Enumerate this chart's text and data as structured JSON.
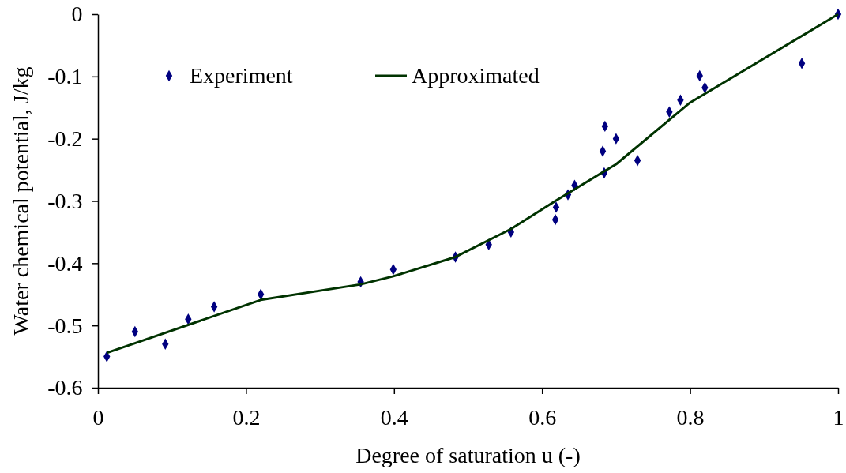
{
  "chart_data": {
    "type": "scatter",
    "xlabel": "Degree of saturation u (-)",
    "ylabel": "Water chemical potential, J/kg",
    "xlim": [
      0,
      1
    ],
    "xticks": [
      0,
      0.2,
      0.4,
      0.6,
      0.8,
      1
    ],
    "ylim": [
      -0.6,
      0
    ],
    "yticks": [
      -0.6,
      -0.5,
      -0.4,
      -0.3,
      -0.2,
      -0.1,
      0
    ],
    "grid": false,
    "legend": "top left",
    "series": [
      {
        "name": "Experiment",
        "type": "scatter",
        "marker": "diamond",
        "color": "#000080",
        "x": [
          0.012,
          0.05,
          0.091,
          0.122,
          0.157,
          0.22,
          0.355,
          0.399,
          0.483,
          0.528,
          0.558,
          0.618,
          0.619,
          0.635,
          0.644,
          0.682,
          0.684,
          0.685,
          0.7,
          0.729,
          0.772,
          0.787,
          0.813,
          0.82,
          0.951,
          1
        ],
        "values": [
          -0.55,
          -0.51,
          -0.53,
          -0.49,
          -0.47,
          -0.45,
          -0.43,
          -0.41,
          -0.39,
          -0.37,
          -0.35,
          -0.33,
          -0.31,
          -0.29,
          -0.275,
          -0.22,
          -0.255,
          -0.18,
          -0.2,
          -0.235,
          -0.157,
          -0.138,
          -0.099,
          -0.118,
          -0.079,
          0
        ]
      },
      {
        "name": "Approximated",
        "type": "line",
        "marker": "none",
        "line_style": "solid",
        "color": "#003300",
        "x": [
          0.012,
          0.22,
          0.355,
          0.399,
          0.483,
          0.558,
          0.618,
          0.7,
          0.8,
          1
        ],
        "values": [
          -0.544,
          -0.459,
          -0.434,
          -0.421,
          -0.39,
          -0.345,
          -0.3,
          -0.241,
          -0.142,
          0
        ]
      }
    ]
  }
}
